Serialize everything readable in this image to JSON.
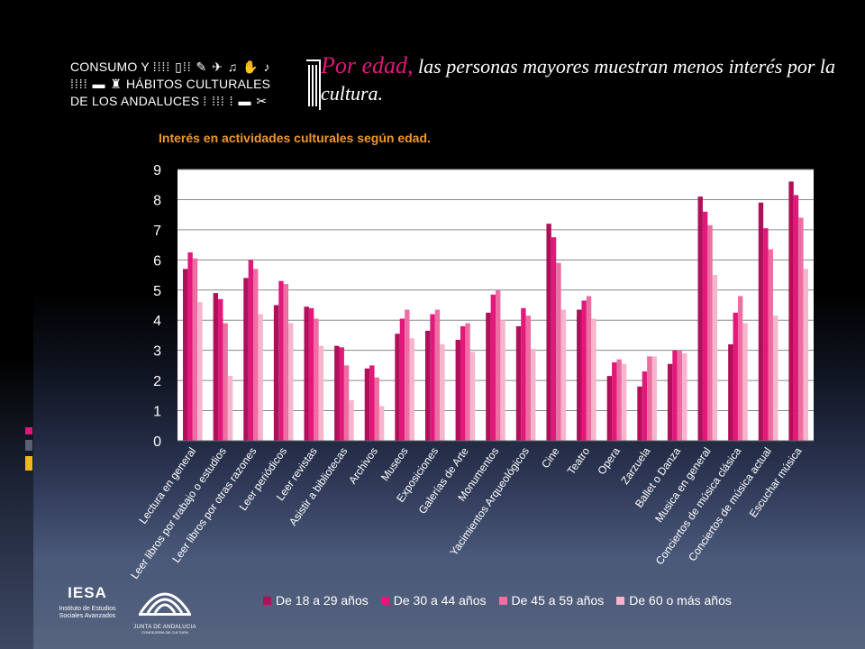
{
  "logo": {
    "line1": "CONSUMO Y",
    "line1_glyphs": "⁞⁞⁞⁞ ▯⁞⁞ ✎ ✈ ♫ ✋ ♪",
    "line2": "HÁBITOS CULTURALES",
    "line2_glyphs": "⁞⁞⁞⁞ ▬ ♜",
    "line3": "DE LOS ANDALUCES",
    "line3_glyphs": "⁞ ⁞⁞⁞ ⁞ ▬ ✂"
  },
  "headline": {
    "lead": "Por edad,",
    "rest": " las personas mayores muestran menos interés por la cultura."
  },
  "chart_data": {
    "type": "bar",
    "title": "Interés en actividades culturales según edad.",
    "xlabel": "",
    "ylabel": "",
    "ylim": [
      0,
      9
    ],
    "yticks": [
      0,
      1,
      2,
      3,
      4,
      5,
      6,
      7,
      8,
      9
    ],
    "grid": true,
    "legend_position": "bottom",
    "categories": [
      "Lectura en general",
      "Leer libros por trabajo o estudios",
      "Leer libros por otras razones",
      "Leer periódicos",
      "Leer revistas",
      "Asistir a bibliotecas",
      "Archivos",
      "Museos",
      "Exposiciones",
      "Galerías de Arte",
      "Monumentos",
      "Yacimientos Arqueológicos",
      "Cine",
      "Teatro",
      "Opera",
      "Zarzuela",
      "Ballet o Danza",
      "Musica en general",
      "Conciertos de música clásica",
      "Conciertos de música actual",
      "Escuchar música"
    ],
    "series": [
      {
        "name": "De 18 a 29 años",
        "color": "#b0105a",
        "values": [
          5.7,
          4.9,
          5.4,
          4.5,
          4.45,
          3.15,
          2.4,
          3.55,
          3.65,
          3.35,
          4.25,
          3.8,
          7.2,
          4.35,
          2.15,
          1.8,
          2.55,
          8.1,
          3.2,
          7.9,
          8.6
        ]
      },
      {
        "name": "De 30 a 44 años",
        "color": "#e2187a",
        "values": [
          6.25,
          4.7,
          6.0,
          5.3,
          4.4,
          3.1,
          2.5,
          4.05,
          4.2,
          3.8,
          4.85,
          4.4,
          6.75,
          4.65,
          2.6,
          2.3,
          3.0,
          7.6,
          4.25,
          7.05,
          8.15
        ]
      },
      {
        "name": "De 45 a 59 años",
        "color": "#ee6ea3",
        "values": [
          6.05,
          3.9,
          5.7,
          5.2,
          4.05,
          2.5,
          2.1,
          4.35,
          4.35,
          3.9,
          5.0,
          4.15,
          5.9,
          4.8,
          2.7,
          2.8,
          3.0,
          7.15,
          4.8,
          6.35,
          7.4
        ]
      },
      {
        "name": "De 60 o más años",
        "color": "#f6b4cd",
        "values": [
          4.6,
          2.15,
          4.2,
          3.9,
          3.15,
          1.35,
          1.15,
          3.4,
          3.2,
          2.95,
          4.0,
          3.05,
          4.35,
          4.05,
          2.55,
          2.8,
          2.9,
          5.5,
          3.9,
          4.15,
          5.7
        ]
      }
    ]
  }
}
